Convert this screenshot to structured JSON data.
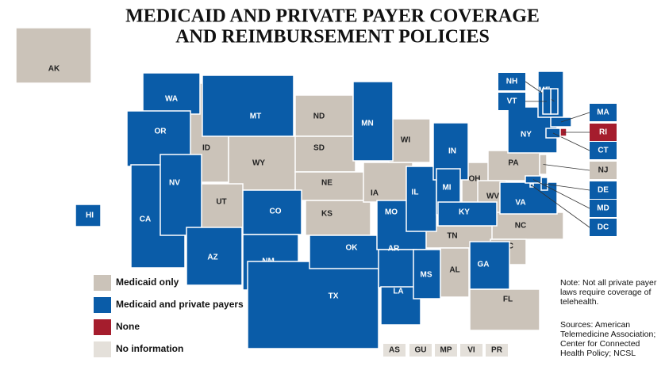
{
  "header": {
    "title_lines": [
      "MEDICAID AND PRIVATE PAYER COVERAGE",
      "AND REIMBURSEMENT POLICIES"
    ]
  },
  "legend": {
    "items": [
      {
        "label": "Medicaid only",
        "color": "#cbc3b9",
        "states": [
          "AK",
          "ID",
          "WY",
          "ND",
          "SD",
          "NE",
          "KS",
          "UT",
          "IA",
          "WI",
          "OH",
          "PA",
          "WV",
          "TN",
          "NC",
          "SC",
          "AL",
          "FL",
          "NJ"
        ]
      },
      {
        "label": "Medicaid and private payers",
        "color": "#0a5ca8",
        "states": [
          "WA",
          "OR",
          "CA",
          "NV",
          "MT",
          "CO",
          "AZ",
          "NM",
          "TX",
          "OK",
          "MN",
          "MO",
          "AR",
          "LA",
          "MS",
          "IL",
          "IN",
          "MI",
          "KY",
          "VA",
          "GA",
          "NY",
          "ME",
          "NH",
          "VT",
          "MA",
          "CT",
          "DE",
          "MD",
          "DC",
          "HI"
        ]
      },
      {
        "label": "None",
        "color": "#a51d2d",
        "states": [
          "RI"
        ]
      },
      {
        "label": "No information",
        "color": "#e4e0da",
        "states": [
          "AS",
          "GU",
          "MP",
          "VI",
          "PR"
        ]
      }
    ]
  },
  "note": {
    "lines": [
      "Note: Not all private payer",
      "laws require coverage of",
      "telehealth."
    ]
  },
  "sources": {
    "lines": [
      "Sources: American",
      "Telemedicine Association;",
      "Center for Connected",
      "Health Policy; NCSL"
    ]
  }
}
